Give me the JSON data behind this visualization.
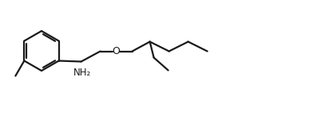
{
  "background": "#ffffff",
  "line_color": "#1a1a1a",
  "line_width": 1.6,
  "figure_size": [
    3.87,
    1.46
  ],
  "dpi": 100,
  "nh2_fontsize": 8.5,
  "o_fontsize": 9.0
}
